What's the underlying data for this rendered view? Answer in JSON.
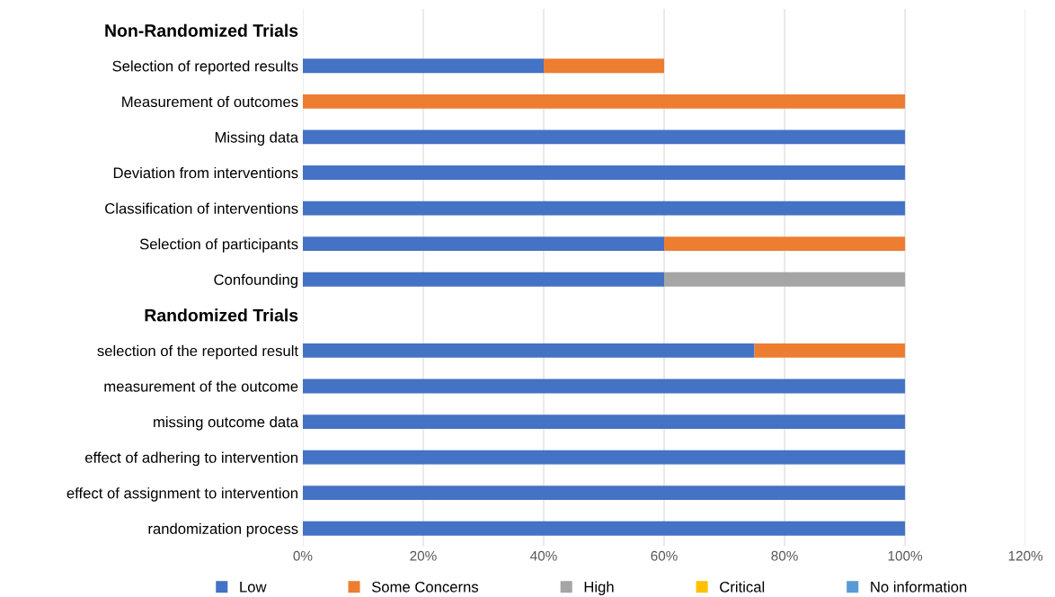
{
  "chart_data": {
    "type": "bar",
    "orientation": "horizontal",
    "stacked": true,
    "categories": [
      "Non-Randomized Trials",
      "Selection of reported results",
      "Measurement of outcomes",
      "Missing data",
      "Deviation from interventions",
      "Classification of interventions",
      "Selection of participants",
      "Confounding",
      "Randomized Trials",
      "selection of the reported result",
      "measurement of the outcome",
      "missing outcome data",
      "effect of adhering to intervention",
      "effect of assignment to intervention",
      "randomization process"
    ],
    "series": [
      {
        "name": "Low",
        "color": "#4472c4",
        "values": [
          null,
          40,
          0,
          100,
          100,
          100,
          60,
          60,
          null,
          75,
          100,
          100,
          100,
          100,
          100
        ]
      },
      {
        "name": "Some Concerns",
        "color": "#ed7d31",
        "values": [
          null,
          20,
          100,
          0,
          0,
          0,
          40,
          0,
          null,
          25,
          0,
          0,
          0,
          0,
          0
        ]
      },
      {
        "name": "High",
        "color": "#a5a5a5",
        "values": [
          null,
          0,
          0,
          0,
          0,
          0,
          0,
          40,
          null,
          0,
          0,
          0,
          0,
          0,
          0
        ]
      },
      {
        "name": "Critical",
        "color": "#ffc000",
        "values": [
          null,
          0,
          0,
          0,
          0,
          0,
          0,
          0,
          null,
          0,
          0,
          0,
          0,
          0,
          0
        ]
      },
      {
        "name": "No information",
        "color": "#5b9bd5",
        "values": [
          null,
          0,
          0,
          0,
          0,
          0,
          0,
          0,
          null,
          0,
          0,
          0,
          0,
          0,
          0
        ]
      }
    ],
    "xlim": [
      0,
      120
    ],
    "xticks": [
      {
        "value": 0,
        "label": "0%"
      },
      {
        "value": 20,
        "label": "20%"
      },
      {
        "value": 40,
        "label": "40%"
      },
      {
        "value": 60,
        "label": "60%"
      },
      {
        "value": 80,
        "label": "80%"
      },
      {
        "value": 100,
        "label": "100%"
      },
      {
        "value": 120,
        "label": "120%"
      }
    ],
    "grid": "x",
    "legend": "bottom"
  }
}
